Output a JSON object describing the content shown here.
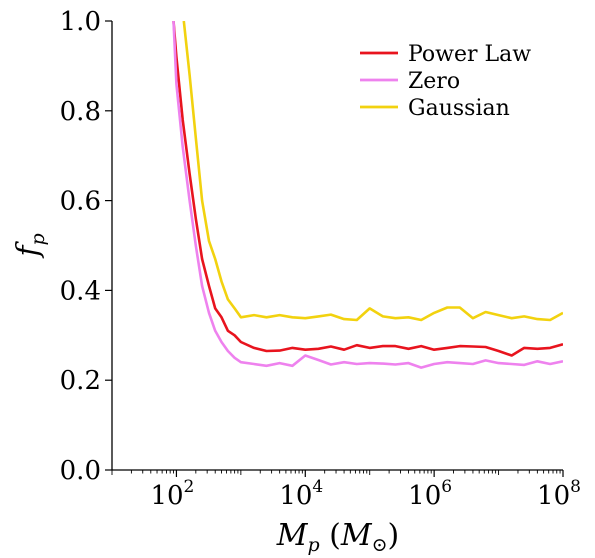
{
  "chart_data": {
    "type": "line",
    "xlabel": {
      "main": "M",
      "sub": "p",
      "paren_open": "(",
      "unit": "M",
      "unit_sub": "⊙",
      "paren_close": ")"
    },
    "ylabel": {
      "main": "f",
      "sub": "p"
    },
    "xscale": "log",
    "xlim": [
      10,
      100000000
    ],
    "ylim": [
      0.0,
      1.0
    ],
    "yticks": [
      "0.0",
      "0.2",
      "0.4",
      "0.6",
      "0.8",
      "1.0"
    ],
    "xticks": [
      {
        "base": "10",
        "exp": "2",
        "value": 100
      },
      {
        "base": "10",
        "exp": "4",
        "value": 10000
      },
      {
        "base": "10",
        "exp": "6",
        "value": 1000000
      },
      {
        "base": "10",
        "exp": "8",
        "value": 100000000
      }
    ],
    "grid": false,
    "legend": "top-right",
    "series": [
      {
        "name": "Power Law",
        "color": "#e8141e",
        "x": [
          90,
          100,
          125,
          160,
          200,
          250,
          320,
          400,
          500,
          630,
          800,
          1000,
          1600,
          2500,
          4000,
          6300,
          10000,
          16000,
          25000,
          40000,
          63000,
          100000,
          160000,
          250000,
          400000,
          630000,
          1000000,
          1600000,
          2500000,
          4000000,
          6300000,
          10000000,
          16000000,
          25000000,
          40000000,
          63000000,
          100000000
        ],
        "y": [
          1.0,
          0.92,
          0.78,
          0.66,
          0.56,
          0.47,
          0.41,
          0.36,
          0.34,
          0.31,
          0.3,
          0.285,
          0.272,
          0.265,
          0.266,
          0.272,
          0.268,
          0.27,
          0.275,
          0.268,
          0.278,
          0.272,
          0.276,
          0.276,
          0.27,
          0.276,
          0.268,
          0.272,
          0.276,
          0.275,
          0.274,
          0.265,
          0.255,
          0.272,
          0.27,
          0.272,
          0.28
        ]
      },
      {
        "name": "Zero",
        "color": "#ee82ee",
        "x": [
          90,
          100,
          125,
          160,
          200,
          250,
          320,
          400,
          500,
          630,
          800,
          1000,
          1600,
          2500,
          4000,
          6300,
          10000,
          16000,
          25000,
          40000,
          63000,
          100000,
          160000,
          250000,
          400000,
          630000,
          1000000,
          1600000,
          2500000,
          4000000,
          6300000,
          10000000,
          16000000,
          25000000,
          40000000,
          63000000,
          100000000
        ],
        "y": [
          1.0,
          0.86,
          0.72,
          0.6,
          0.5,
          0.41,
          0.35,
          0.31,
          0.285,
          0.265,
          0.25,
          0.24,
          0.236,
          0.232,
          0.238,
          0.232,
          0.255,
          0.245,
          0.235,
          0.24,
          0.236,
          0.238,
          0.237,
          0.235,
          0.238,
          0.228,
          0.236,
          0.24,
          0.238,
          0.236,
          0.244,
          0.238,
          0.236,
          0.234,
          0.242,
          0.236,
          0.242
        ]
      },
      {
        "name": "Gaussian",
        "color": "#f2d20f",
        "x": [
          130,
          160,
          200,
          250,
          320,
          400,
          500,
          630,
          800,
          1000,
          1600,
          2500,
          4000,
          6300,
          10000,
          16000,
          25000,
          40000,
          63000,
          100000,
          160000,
          250000,
          400000,
          630000,
          1000000,
          1600000,
          2500000,
          4000000,
          6300000,
          10000000,
          16000000,
          25000000,
          40000000,
          63000000,
          100000000
        ],
        "y": [
          1.0,
          0.88,
          0.74,
          0.6,
          0.51,
          0.47,
          0.42,
          0.38,
          0.36,
          0.34,
          0.345,
          0.34,
          0.345,
          0.34,
          0.338,
          0.342,
          0.346,
          0.336,
          0.334,
          0.36,
          0.342,
          0.338,
          0.34,
          0.334,
          0.35,
          0.362,
          0.362,
          0.338,
          0.352,
          0.345,
          0.338,
          0.342,
          0.336,
          0.334,
          0.35
        ]
      }
    ]
  }
}
